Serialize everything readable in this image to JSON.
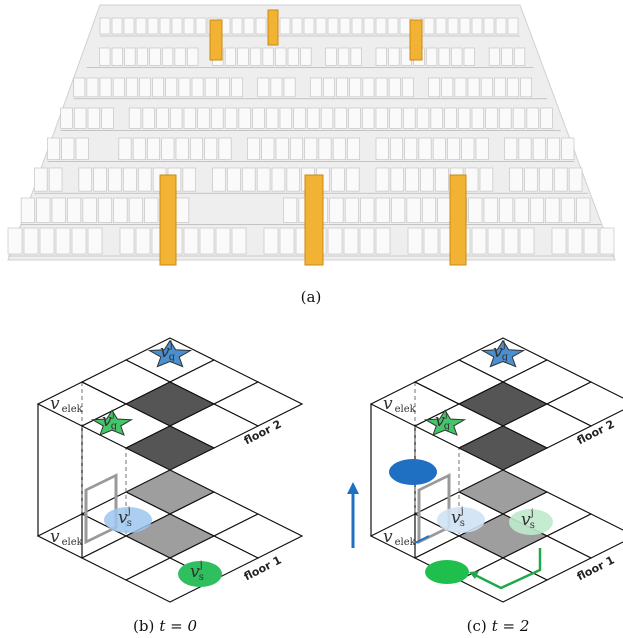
{
  "figure": {
    "panel_a": {
      "caption": "(a)"
    },
    "panel_b": {
      "caption_label": "(b)",
      "caption_math": "t = 0",
      "floor_2": "floor 2",
      "floor_1": "floor 1",
      "elevator": {
        "symbol": "v",
        "subscript": "elek"
      },
      "goal": {
        "symbol": "v",
        "superscript": "j",
        "subscript": "g"
      },
      "start": {
        "symbol": "v",
        "superscript": "j",
        "subscript": "s"
      }
    },
    "panel_c": {
      "caption_label": "(c)",
      "caption_math": "t = 2",
      "floor_2": "floor 2",
      "floor_1": "floor 1",
      "elevator": {
        "symbol": "v",
        "subscript": "elek"
      },
      "goal": {
        "symbol": "v",
        "superscript": "j",
        "subscript": "g"
      },
      "start": {
        "symbol": "v",
        "superscript": "j",
        "subscript": "s"
      }
    }
  }
}
